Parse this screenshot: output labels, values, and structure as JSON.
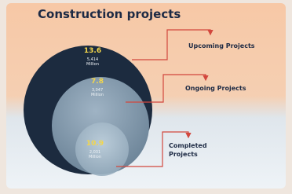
{
  "header": {
    "title": "Construction projects"
  },
  "rings": [
    {
      "value": "13.6",
      "amount": "5,414",
      "unit": "Million",
      "label": "Upcoming Projects"
    },
    {
      "value": "7.8",
      "amount": "3,047",
      "unit": "Million",
      "label": "Ongoing Projects"
    },
    {
      "value": "10.9",
      "amount": "2,031",
      "unit": "Million",
      "label": "Completed Projects"
    }
  ]
}
